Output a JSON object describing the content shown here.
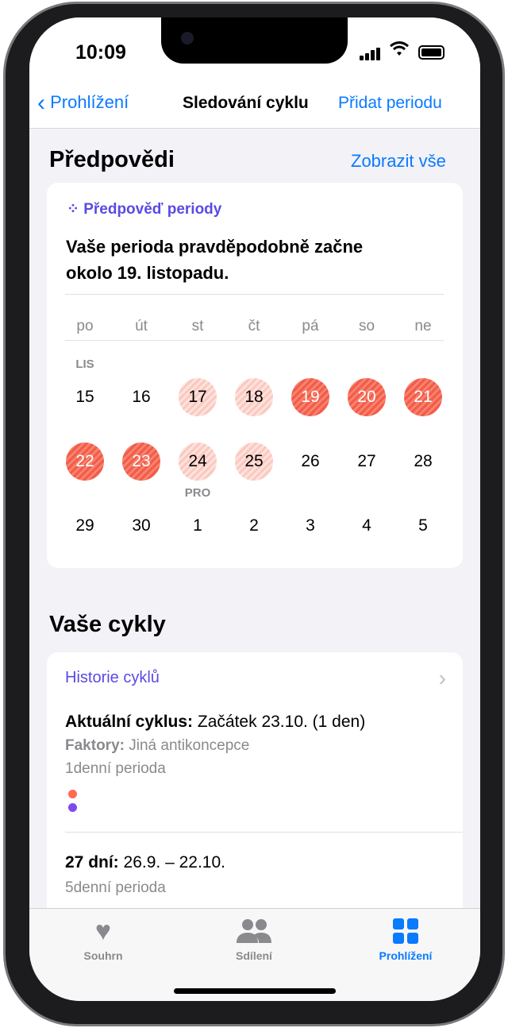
{
  "status": {
    "time": "10:09"
  },
  "nav": {
    "back_label": "Prohlížení",
    "title": "Sledování cyklu",
    "action_label": "Přidat periodu"
  },
  "predictions": {
    "heading": "Předpovědi",
    "show_all": "Zobrazit vše",
    "card": {
      "title": "Předpověď periody",
      "text_line1": "Vaše perioda pravděpodobně začne",
      "text_line2": "okolo 19. listopadu.",
      "weekdays": [
        "po",
        "út",
        "st",
        "čt",
        "pá",
        "so",
        "ne"
      ],
      "month_labels": {
        "nov": "LIS",
        "dec": "PRO"
      },
      "weeks": [
        [
          "15",
          "16",
          "17",
          "18",
          "19",
          "20",
          "21"
        ],
        [
          "22",
          "23",
          "24",
          "25",
          "26",
          "27",
          "28"
        ],
        [
          "29",
          "30",
          "1",
          "2",
          "3",
          "4",
          "5"
        ]
      ],
      "predicted_likely": [
        "19",
        "20",
        "21",
        "22",
        "23"
      ],
      "predicted_possible": [
        "17",
        "18",
        "24",
        "25"
      ],
      "colors": {
        "likely": "#f25c4a",
        "possible": "#fbc9c0"
      }
    }
  },
  "cycles": {
    "heading": "Vaše cykly",
    "history_label": "Historie cyklů",
    "current": {
      "label": "Aktuální cyklus:",
      "value": "Začátek 23.10. (1 den)",
      "factors_label": "Faktory:",
      "factors_value": "Jiná antikoncepce",
      "period": "1denní perioda",
      "dot_colors": [
        "#ff6a50",
        "#7d4af0"
      ]
    },
    "previous": {
      "label": "27 dní:",
      "value": "26.9. – 22.10.",
      "period": "5denní perioda"
    }
  },
  "tabbar": {
    "items": [
      {
        "label": "Souhrn"
      },
      {
        "label": "Sdílení"
      },
      {
        "label": "Prohlížení",
        "active": true
      }
    ],
    "accent": "#0a7aff"
  }
}
